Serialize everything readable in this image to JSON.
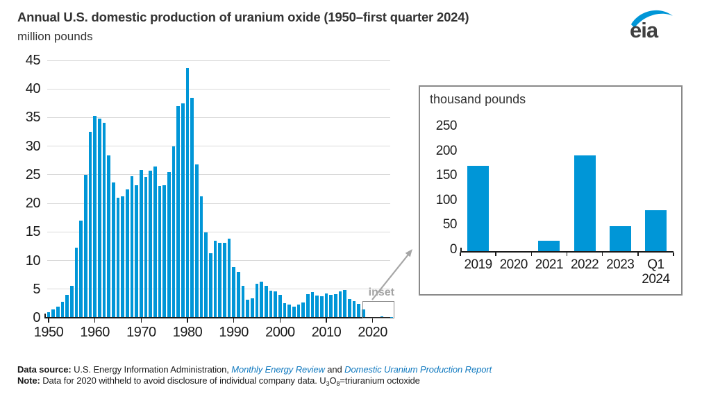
{
  "header": {
    "title": "Annual U.S. domestic production of uranium oxide (1950–first quarter 2024)",
    "subtitle": "million pounds"
  },
  "logo": {
    "text": "eia"
  },
  "colors": {
    "bar": "#0096d7",
    "grid": "#d9d9d9",
    "axis": "#1a1a1a",
    "panel_border": "#898989",
    "muted_gray": "#a3a3a3",
    "link_blue": "#1079bf"
  },
  "annotations": {
    "inset_callout_label": "inset"
  },
  "chart_data": [
    {
      "id": "main-chart",
      "type": "bar",
      "title": "Annual U.S. domestic production of uranium oxide (1950–first quarter 2024)",
      "ylabel": "million pounds",
      "ylim": [
        0,
        45
      ],
      "ytick_step": 5,
      "grid": "horizontal",
      "xticks": [
        1950,
        1960,
        1970,
        1980,
        1990,
        2000,
        2010,
        2020
      ],
      "year_start": 1950,
      "values": [
        1.0,
        1.5,
        2.0,
        2.8,
        4.0,
        5.6,
        12.2,
        17.0,
        25.0,
        32.5,
        35.3,
        34.8,
        34.1,
        28.4,
        23.7,
        21.0,
        21.2,
        22.5,
        24.7,
        23.2,
        25.8,
        24.6,
        25.7,
        26.4,
        23.1,
        23.2,
        25.5,
        30.0,
        37.0,
        37.5,
        43.7,
        38.5,
        26.8,
        21.2,
        14.9,
        11.3,
        13.5,
        13.1,
        13.1,
        13.8,
        8.9,
        8.0,
        5.6,
        3.1,
        3.4,
        6.0,
        6.3,
        5.6,
        4.7,
        4.6,
        4.0,
        2.6,
        2.3,
        2.0,
        2.3,
        2.7,
        4.1,
        4.5,
        3.9,
        3.7,
        4.2,
        4.0,
        4.1,
        4.6,
        4.9,
        3.3,
        2.9,
        2.4,
        1.5,
        0.17,
        0,
        0.02,
        0.19,
        0.05,
        0.08
      ]
    },
    {
      "id": "inset-chart",
      "type": "bar",
      "title": "thousand pounds",
      "ylim": [
        0,
        250
      ],
      "ytick_step": 50,
      "grid": "none",
      "categories": [
        "2019",
        "2020",
        "2021",
        "2022",
        "2023",
        "Q1 2024"
      ],
      "x_label_lines": [
        [
          "2019"
        ],
        [
          "2020"
        ],
        [
          "2021"
        ],
        [
          "2022"
        ],
        [
          "2023"
        ],
        [
          "Q1",
          "2024"
        ]
      ],
      "values": [
        173,
        0,
        21,
        194,
        50,
        83
      ]
    }
  ],
  "footer": {
    "source_parts": [
      {
        "text": "Data source: ",
        "bold": true
      },
      {
        "text": "U.S. Energy Information Administration, "
      },
      {
        "text": "Monthly Energy Review",
        "link": true
      },
      {
        "text": " and "
      },
      {
        "text": "Domestic Uranium Production Report",
        "link": true
      }
    ],
    "note_parts": [
      {
        "text": "Note: ",
        "bold": true
      },
      {
        "text": "Data for 2020 withheld to avoid disclosure of individual company data. U"
      },
      {
        "text": "3",
        "sub": true
      },
      {
        "text": "O"
      },
      {
        "text": "8",
        "sub": true
      },
      {
        "text": "=triuranium octoxide"
      }
    ]
  }
}
